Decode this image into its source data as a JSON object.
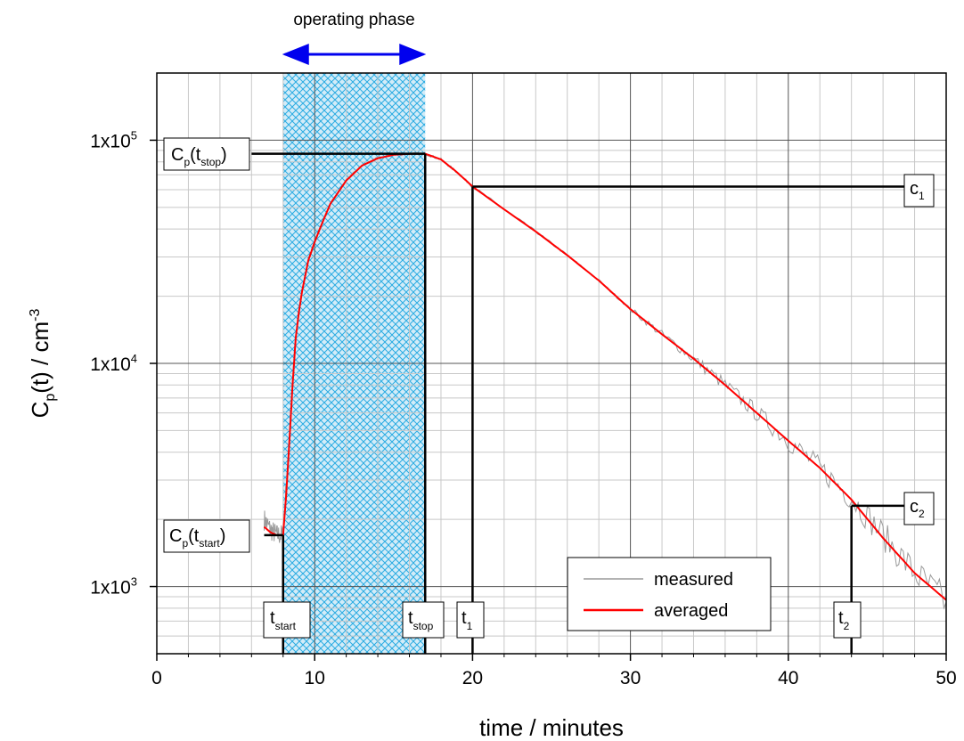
{
  "chart_data": {
    "type": "line",
    "title": "",
    "xlabel": "time / minutes",
    "ylabel": {
      "main": "C",
      "sub": "p",
      "rest": "(t) / cm",
      "sup": "-3"
    },
    "xlim": [
      0,
      50
    ],
    "ylim": [
      500,
      200000
    ],
    "yscale": "log",
    "grid": true,
    "xticks": [
      0,
      10,
      20,
      30,
      40,
      50
    ],
    "xtick_labels": [
      "0",
      "10",
      "20",
      "30",
      "40",
      "50"
    ],
    "yticks": [
      1000,
      10000,
      100000
    ],
    "ytick_labels": [
      {
        "base": "1x10",
        "exp": "3"
      },
      {
        "base": "1x10",
        "exp": "4"
      },
      {
        "base": "1x10",
        "exp": "5"
      }
    ],
    "legend": {
      "position": "bottom-right",
      "entries": [
        {
          "label": "measured",
          "color": "#9a9a9a"
        },
        {
          "label": "averaged",
          "color": "#ff0000"
        }
      ]
    },
    "shaded_region": {
      "x": [
        8,
        17
      ],
      "color": "#29abe2"
    },
    "operating_phase": {
      "label": "operating phase",
      "x": [
        8,
        17
      ],
      "color": "#0000ee"
    },
    "series": [
      {
        "name": "measured",
        "color": "#9a9a9a",
        "noise": "high-frequency scatter around the averaged curve, growing with time",
        "x": [
          6.8,
          7.2,
          7.6,
          8.0,
          8.4,
          8.8,
          9.2,
          9.6,
          10,
          11,
          12,
          13,
          14,
          15,
          16,
          17,
          18,
          19,
          20,
          22,
          24,
          26,
          28,
          30,
          32,
          34,
          36,
          38,
          40,
          42,
          44,
          46,
          48,
          50
        ],
        "y": [
          2000,
          1800,
          1700,
          1700,
          4500,
          13000,
          21000,
          29000,
          35000,
          52000,
          66000,
          77000,
          83000,
          86000,
          87000,
          87000,
          82000,
          72000,
          62000,
          49000,
          39000,
          30500,
          23500,
          17500,
          13500,
          10500,
          8000,
          6000,
          4500,
          3400,
          2500,
          1700,
          1150,
          850
        ]
      },
      {
        "name": "averaged",
        "color": "#ff0000",
        "x": [
          6.8,
          7.2,
          7.6,
          8.0,
          8.2,
          8.4,
          8.6,
          8.8,
          9.0,
          9.2,
          9.6,
          10,
          10.5,
          11,
          12,
          13,
          14,
          15,
          16,
          17,
          18,
          19,
          20,
          22,
          24,
          26,
          28,
          30,
          32,
          34,
          36,
          38,
          40,
          42,
          44,
          46,
          48,
          50
        ],
        "y": [
          1850,
          1750,
          1700,
          1700,
          2600,
          4500,
          8000,
          13000,
          17000,
          21000,
          29000,
          35000,
          43000,
          52000,
          66000,
          77000,
          83000,
          86000,
          87000,
          87000,
          82000,
          72000,
          62000,
          49000,
          39000,
          30500,
          23500,
          17500,
          13500,
          10500,
          8000,
          6000,
          4500,
          3400,
          2450,
          1650,
          1150,
          870
        ]
      }
    ],
    "reference_lines": [
      {
        "name": "cp-tstart",
        "x": [
          6.8,
          8
        ],
        "y": 1700,
        "vline_to_axis": true
      },
      {
        "name": "cp-tstop",
        "x": [
          6.0,
          17
        ],
        "y": 87000,
        "vline_to_axis": true
      },
      {
        "name": "c1",
        "x": [
          20,
          48.2
        ],
        "y": 62000,
        "vline_to_axis": true
      },
      {
        "name": "c2",
        "x": [
          44,
          47.6
        ],
        "y": 2300,
        "vline_to_axis": true
      }
    ],
    "annotations": {
      "cp_tstop": {
        "main": "C",
        "sub1": "p",
        "mid": "(t",
        "sub2": "stop",
        "end": ")"
      },
      "cp_tstart": {
        "main": "C",
        "sub1": "p",
        "mid": "(t",
        "sub2": "start",
        "end": ")"
      },
      "c1": {
        "main": "c",
        "sub": "1"
      },
      "c2": {
        "main": "c",
        "sub": "2"
      },
      "t_start": {
        "main": "t",
        "sub": "start",
        "x": 8
      },
      "t_stop": {
        "main": "t",
        "sub": "stop",
        "x": 17
      },
      "t1": {
        "main": "t",
        "sub": "1",
        "x": 20
      },
      "t2": {
        "main": "t",
        "sub": "2",
        "x": 44
      }
    }
  }
}
